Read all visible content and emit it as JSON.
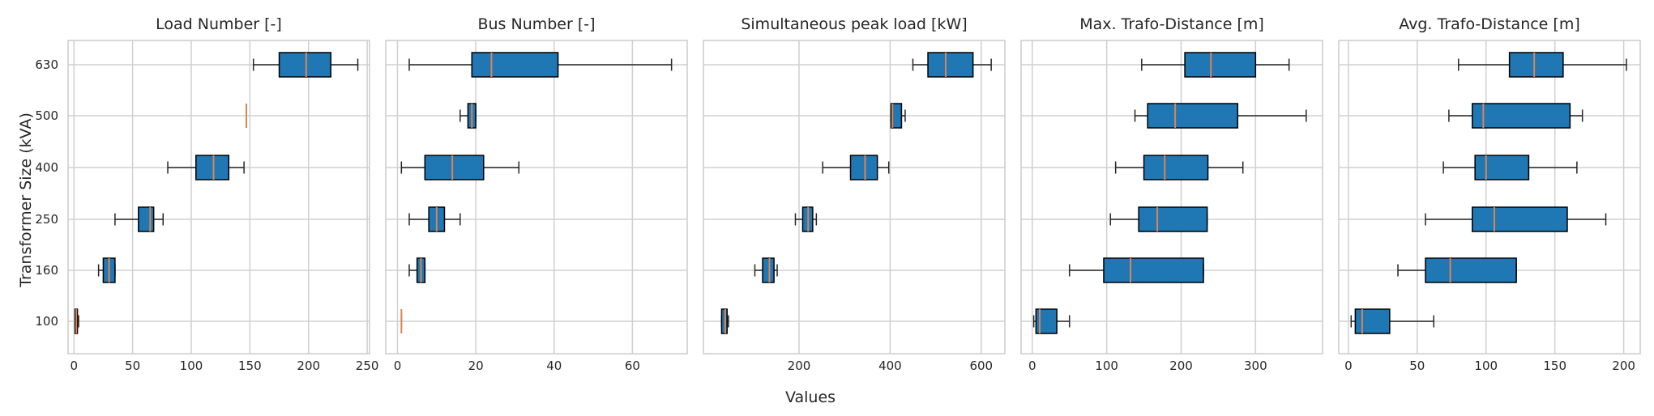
{
  "figure": {
    "ylabel": "Transformer Size (kVA)",
    "xlabel": "Values"
  },
  "chart_data": {
    "type": "box",
    "categories": [
      "100",
      "160",
      "250",
      "400",
      "500",
      "630"
    ],
    "colors": {
      "box_fill": "#1f77b4",
      "box_edge": "#000000",
      "median": "#dd8452",
      "grid": "#d0d0d0",
      "whisker": "#262626"
    },
    "grid": true,
    "panels": [
      {
        "title": "Load Number [-]",
        "xlim": [
          -5,
          252
        ],
        "xticks": [
          0,
          50,
          100,
          150,
          200,
          250
        ],
        "boxes": [
          {
            "category": "100",
            "whislo": 1,
            "q1": 1,
            "med": 2,
            "q3": 3,
            "whishi": 4
          },
          {
            "category": "160",
            "whislo": 21,
            "q1": 25,
            "med": 30,
            "q3": 35,
            "whishi": 35
          },
          {
            "category": "250",
            "whislo": 35,
            "q1": 55,
            "med": 65,
            "q3": 68,
            "whishi": 76
          },
          {
            "category": "400",
            "whislo": 80,
            "q1": 104,
            "med": 119,
            "q3": 132,
            "whishi": 145
          },
          {
            "category": "500",
            "whislo": 147,
            "q1": 147,
            "med": 147,
            "q3": 147,
            "whishi": 147
          },
          {
            "category": "630",
            "whislo": 153,
            "q1": 175,
            "med": 198,
            "q3": 219,
            "whishi": 242
          }
        ]
      },
      {
        "title": "Bus Number [-]",
        "xlim": [
          -3,
          74
        ],
        "xticks": [
          0,
          20,
          40,
          60
        ],
        "boxes": [
          {
            "category": "100",
            "whislo": 1,
            "q1": 1,
            "med": 1,
            "q3": 1,
            "whishi": 1
          },
          {
            "category": "160",
            "whislo": 3,
            "q1": 5,
            "med": 6,
            "q3": 7,
            "whishi": 7
          },
          {
            "category": "250",
            "whislo": 3,
            "q1": 8,
            "med": 10,
            "q3": 12,
            "whishi": 16
          },
          {
            "category": "400",
            "whislo": 1,
            "q1": 7,
            "med": 14,
            "q3": 22,
            "whishi": 31
          },
          {
            "category": "500",
            "whislo": 16,
            "q1": 18,
            "med": 19,
            "q3": 20,
            "whishi": 20
          },
          {
            "category": "630",
            "whislo": 3,
            "q1": 19,
            "med": 24,
            "q3": 41,
            "whishi": 70
          }
        ]
      },
      {
        "title": "Simultaneous peak load [kW]",
        "xlim": [
          -10,
          652
        ],
        "xticks": [
          200,
          400,
          600
        ],
        "boxes": [
          {
            "category": "100",
            "whislo": 30,
            "q1": 30,
            "med": 38,
            "q3": 42,
            "whishi": 45
          },
          {
            "category": "160",
            "whislo": 103,
            "q1": 120,
            "med": 135,
            "q3": 145,
            "whishi": 152
          },
          {
            "category": "250",
            "whislo": 192,
            "q1": 208,
            "med": 220,
            "q3": 230,
            "whishi": 238
          },
          {
            "category": "400",
            "whislo": 252,
            "q1": 313,
            "med": 345,
            "q3": 372,
            "whishi": 397
          },
          {
            "category": "500",
            "whislo": 402,
            "q1": 402,
            "med": 405,
            "q3": 425,
            "whishi": 433
          },
          {
            "category": "630",
            "whislo": 450,
            "q1": 483,
            "med": 522,
            "q3": 582,
            "whishi": 622
          }
        ]
      },
      {
        "title": "Max. Trafo-Distance [m]",
        "xlim": [
          -15,
          390
        ],
        "xticks": [
          0,
          100,
          200,
          300
        ],
        "boxes": [
          {
            "category": "100",
            "whislo": 2,
            "q1": 5,
            "med": 10,
            "q3": 33,
            "whishi": 50
          },
          {
            "category": "160",
            "whislo": 50,
            "q1": 96,
            "med": 132,
            "q3": 230,
            "whishi": 230
          },
          {
            "category": "250",
            "whislo": 105,
            "q1": 143,
            "med": 168,
            "q3": 235,
            "whishi": 235
          },
          {
            "category": "400",
            "whislo": 112,
            "q1": 150,
            "med": 178,
            "q3": 236,
            "whishi": 283
          },
          {
            "category": "500",
            "whislo": 138,
            "q1": 155,
            "med": 192,
            "q3": 276,
            "whishi": 368
          },
          {
            "category": "630",
            "whislo": 147,
            "q1": 205,
            "med": 240,
            "q3": 300,
            "whishi": 345
          }
        ]
      },
      {
        "title": "Avg. Trafo-Distance [m]",
        "xlim": [
          -7,
          212
        ],
        "xticks": [
          0,
          50,
          100,
          150,
          200
        ],
        "boxes": [
          {
            "category": "100",
            "whislo": 2,
            "q1": 5,
            "med": 10,
            "q3": 30,
            "whishi": 62
          },
          {
            "category": "160",
            "whislo": 36,
            "q1": 56,
            "med": 74,
            "q3": 122,
            "whishi": 122
          },
          {
            "category": "250",
            "whislo": 56,
            "q1": 90,
            "med": 106,
            "q3": 159,
            "whishi": 187
          },
          {
            "category": "400",
            "whislo": 69,
            "q1": 92,
            "med": 100,
            "q3": 131,
            "whishi": 166
          },
          {
            "category": "500",
            "whislo": 73,
            "q1": 90,
            "med": 98,
            "q3": 161,
            "whishi": 170
          },
          {
            "category": "630",
            "whislo": 80,
            "q1": 117,
            "med": 135,
            "q3": 156,
            "whishi": 202
          }
        ]
      }
    ]
  }
}
